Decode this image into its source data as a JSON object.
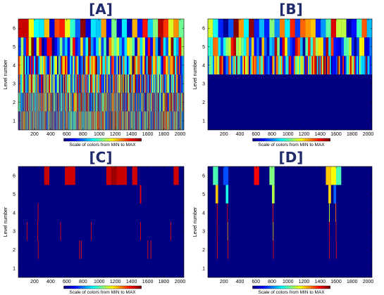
{
  "figure": {
    "background": "#ffffff",
    "title_color": "#1f2a6b",
    "colormap": "jet",
    "colorbar_label": "Scale of colors from MIN to MAX"
  },
  "chart_data": [
    {
      "type": "heatmap",
      "title": "[A]",
      "ylabel": "Level number",
      "xlim": [
        0,
        2048
      ],
      "ylim": [
        0.5,
        6.5
      ],
      "xticks": [
        200,
        400,
        600,
        800,
        1000,
        1200,
        1400,
        1600,
        1800,
        2000
      ],
      "yticks": [
        1,
        2,
        3,
        4,
        5,
        6
      ],
      "levels": [
        {
          "level": 6,
          "segments": 32,
          "seed": 11,
          "mode": "full"
        },
        {
          "level": 5,
          "segments": 64,
          "seed": 23,
          "mode": "full"
        },
        {
          "level": 4,
          "segments": 128,
          "seed": 37,
          "mode": "full"
        },
        {
          "level": 3,
          "segments": 256,
          "seed": 41,
          "mode": "full"
        },
        {
          "level": 2,
          "segments": 512,
          "seed": 53,
          "mode": "full"
        },
        {
          "level": 1,
          "segments": 1024,
          "seed": 67,
          "mode": "full"
        }
      ]
    },
    {
      "type": "heatmap",
      "title": "[B]",
      "ylabel": "Level number",
      "xlim": [
        0,
        2048
      ],
      "ylim": [
        0.5,
        6.5
      ],
      "xticks": [
        200,
        400,
        600,
        800,
        1000,
        1200,
        1400,
        1600,
        1800,
        2000
      ],
      "yticks": [
        1,
        2,
        3,
        4,
        5,
        6
      ],
      "levels": [
        {
          "level": 6,
          "segments": 32,
          "seed": 71,
          "mode": "full"
        },
        {
          "level": 5,
          "segments": 64,
          "seed": 83,
          "mode": "full"
        },
        {
          "level": 4,
          "segments": 128,
          "seed": 97,
          "mode": "full"
        },
        {
          "level": 3,
          "segments": 1,
          "seed": 0,
          "mode": "min"
        },
        {
          "level": 2,
          "segments": 1,
          "seed": 0,
          "mode": "min"
        },
        {
          "level": 1,
          "segments": 1,
          "seed": 0,
          "mode": "min"
        }
      ]
    },
    {
      "type": "heatmap",
      "title": "[C]",
      "ylabel": "Level number",
      "xlim": [
        0,
        2048
      ],
      "ylim": [
        0.5,
        6.5
      ],
      "xticks": [
        200,
        400,
        600,
        800,
        1000,
        1200,
        1400,
        1600,
        1800,
        2000
      ],
      "yticks": [
        1,
        2,
        3,
        4,
        5,
        6
      ],
      "levels": [
        {
          "level": 6,
          "mode": "sparse",
          "cells": [
            {
              "x0": 320,
              "x1": 384,
              "v": 0.93
            },
            {
              "x0": 576,
              "x1": 704,
              "v": 0.92
            },
            {
              "x0": 1088,
              "x1": 1152,
              "v": 0.92
            },
            {
              "x0": 1152,
              "x1": 1216,
              "v": 0.97
            },
            {
              "x0": 1216,
              "x1": 1344,
              "v": 0.93
            },
            {
              "x0": 1408,
              "x1": 1472,
              "v": 0.92
            },
            {
              "x0": 1920,
              "x1": 1984,
              "v": 0.92
            }
          ]
        },
        {
          "level": 5,
          "mode": "sparse",
          "cells": [
            {
              "x0": 1504,
              "x1": 1520,
              "v": 0.9
            }
          ]
        },
        {
          "level": 4,
          "mode": "sparse",
          "cells": [
            {
              "x0": 240,
              "x1": 248,
              "v": 0.9
            }
          ]
        },
        {
          "level": 3,
          "mode": "sparse",
          "cells": [
            {
              "x0": 104,
              "x1": 108,
              "v": 0.88
            },
            {
              "x0": 236,
              "x1": 240,
              "v": 0.88
            },
            {
              "x0": 520,
              "x1": 524,
              "v": 0.88
            },
            {
              "x0": 900,
              "x1": 904,
              "v": 0.88
            },
            {
              "x0": 1508,
              "x1": 1512,
              "v": 0.88
            },
            {
              "x0": 1884,
              "x1": 1888,
              "v": 0.88
            }
          ]
        },
        {
          "level": 2,
          "mode": "sparse",
          "cells": [
            {
              "x0": 242,
              "x1": 244,
              "v": 0.86
            },
            {
              "x0": 754,
              "x1": 756,
              "v": 0.86
            },
            {
              "x0": 776,
              "x1": 778,
              "v": 0.86
            },
            {
              "x0": 1598,
              "x1": 1600,
              "v": 0.86
            },
            {
              "x0": 1636,
              "x1": 1638,
              "v": 0.86
            }
          ]
        },
        {
          "level": 1,
          "mode": "sparse",
          "cells": []
        }
      ]
    },
    {
      "type": "heatmap",
      "title": "[D]",
      "ylabel": "Level number",
      "xlim": [
        0,
        2048
      ],
      "ylim": [
        0.5,
        6.5
      ],
      "xticks": [
        200,
        400,
        600,
        800,
        1000,
        1200,
        1400,
        1600,
        1800,
        2000
      ],
      "yticks": [
        1,
        2,
        3,
        4,
        5,
        6
      ],
      "levels": [
        {
          "level": 6,
          "mode": "sparse",
          "cells": [
            {
              "x0": 64,
              "x1": 128,
              "v": 0.45
            },
            {
              "x0": 192,
              "x1": 256,
              "v": 0.2
            },
            {
              "x0": 576,
              "x1": 640,
              "v": 0.88
            },
            {
              "x0": 768,
              "x1": 832,
              "v": 0.5
            },
            {
              "x0": 1472,
              "x1": 1536,
              "v": 0.68
            },
            {
              "x0": 1536,
              "x1": 1600,
              "v": 0.62
            },
            {
              "x0": 1600,
              "x1": 1664,
              "v": 0.45
            }
          ]
        },
        {
          "level": 5,
          "mode": "sparse",
          "cells": [
            {
              "x0": 96,
              "x1": 128,
              "v": 0.68
            },
            {
              "x0": 224,
              "x1": 256,
              "v": 0.4
            },
            {
              "x0": 800,
              "x1": 832,
              "v": 0.55
            },
            {
              "x0": 1504,
              "x1": 1536,
              "v": 0.66
            },
            {
              "x0": 1568,
              "x1": 1600,
              "v": 0.22
            }
          ]
        },
        {
          "level": 4,
          "mode": "sparse",
          "cells": [
            {
              "x0": 112,
              "x1": 120,
              "v": 0.88
            },
            {
              "x0": 240,
              "x1": 248,
              "v": 0.92
            },
            {
              "x0": 808,
              "x1": 816,
              "v": 0.85
            },
            {
              "x0": 1512,
              "x1": 1520,
              "v": 0.58
            },
            {
              "x0": 1592,
              "x1": 1600,
              "v": 0.78
            }
          ]
        },
        {
          "level": 3,
          "mode": "sparse",
          "cells": [
            {
              "x0": 112,
              "x1": 116,
              "v": 0.88
            },
            {
              "x0": 244,
              "x1": 248,
              "v": 0.72
            },
            {
              "x0": 812,
              "x1": 816,
              "v": 0.68
            },
            {
              "x0": 1512,
              "x1": 1516,
              "v": 0.88
            },
            {
              "x0": 1596,
              "x1": 1600,
              "v": 0.86
            }
          ]
        },
        {
          "level": 2,
          "mode": "sparse",
          "cells": [
            {
              "x0": 114,
              "x1": 116,
              "v": 0.86
            },
            {
              "x0": 246,
              "x1": 248,
              "v": 0.86
            },
            {
              "x0": 814,
              "x1": 816,
              "v": 0.86
            },
            {
              "x0": 1514,
              "x1": 1516,
              "v": 0.86
            },
            {
              "x0": 1598,
              "x1": 1600,
              "v": 0.86
            }
          ]
        },
        {
          "level": 1,
          "mode": "sparse",
          "cells": []
        }
      ]
    }
  ]
}
